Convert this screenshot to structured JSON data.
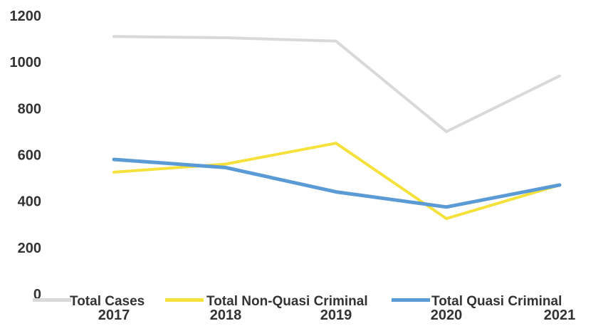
{
  "chart_data": {
    "type": "line",
    "categories": [
      "2017",
      "2018",
      "2019",
      "2020",
      "2021"
    ],
    "ylim": [
      0,
      1200
    ],
    "yticks": [
      0,
      200,
      400,
      600,
      800,
      1000,
      1200
    ],
    "grid": false,
    "legend_position": "bottom",
    "series": [
      {
        "name": "Total Cases",
        "color": "#d9d9d9",
        "values": [
          1110,
          1105,
          1090,
          700,
          940
        ]
      },
      {
        "name": "Total Non-Quasi Criminal",
        "color": "#f5e13c",
        "values": [
          525,
          560,
          650,
          325,
          470
        ]
      },
      {
        "name": "Total Quasi Criminal",
        "color": "#5b9bd5",
        "values": [
          580,
          545,
          440,
          375,
          470
        ]
      }
    ]
  }
}
